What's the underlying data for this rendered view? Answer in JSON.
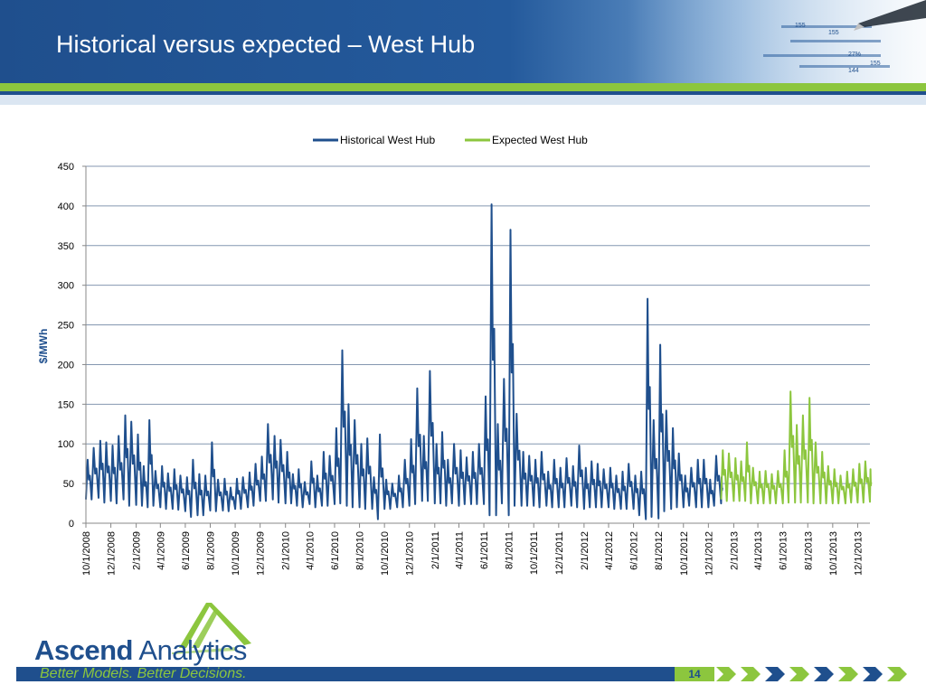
{
  "slide": {
    "title": "Historical versus expected – West Hub",
    "page_number": "14",
    "colors": {
      "brand_blue": "#1f4f8d",
      "brand_green": "#8cc63e"
    }
  },
  "header_art": {
    "numbers": [
      "155",
      "155",
      "27%",
      "155",
      "144"
    ]
  },
  "logo": {
    "bold": "Ascend",
    "rest": " Analytics",
    "tagline": "Better Models. Better Decisions."
  },
  "chart_data": {
    "type": "line",
    "xlabel": "",
    "ylabel": "$/MWh",
    "ylim": [
      0,
      450
    ],
    "yticks": [
      0,
      50,
      100,
      150,
      200,
      250,
      300,
      350,
      400,
      450
    ],
    "xlim": [
      "2008-10-01",
      "2013-12-31"
    ],
    "xticks": [
      "10/1/2008",
      "12/1/2008",
      "2/1/2009",
      "4/1/2009",
      "6/1/2009",
      "8/1/2009",
      "10/1/2009",
      "12/1/2009",
      "2/1/2010",
      "4/1/2010",
      "6/1/2010",
      "8/1/2010",
      "10/1/2010",
      "12/1/2010",
      "2/1/2011",
      "4/1/2011",
      "6/1/2011",
      "8/1/2011",
      "10/1/2011",
      "12/1/2011",
      "2/1/2012",
      "4/1/2012",
      "6/1/2012",
      "8/1/2012",
      "10/1/2012",
      "12/1/2012",
      "2/1/2013",
      "4/1/2013",
      "6/1/2013",
      "8/1/2013",
      "10/1/2013",
      "12/1/2013"
    ],
    "grid": true,
    "legend_position": "top",
    "series": [
      {
        "name": "Historical West Hub",
        "color": "#1f4f8d",
        "x": [
          "2008-10-01",
          "2008-10-15",
          "2008-11-01",
          "2008-11-15",
          "2008-12-01",
          "2008-12-15",
          "2009-01-01",
          "2009-01-15",
          "2009-02-01",
          "2009-02-15",
          "2009-03-01",
          "2009-03-15",
          "2009-04-01",
          "2009-04-15",
          "2009-05-01",
          "2009-05-15",
          "2009-06-01",
          "2009-06-15",
          "2009-07-01",
          "2009-07-15",
          "2009-08-01",
          "2009-08-15",
          "2009-09-01",
          "2009-09-15",
          "2009-10-01",
          "2009-10-15",
          "2009-11-01",
          "2009-11-15",
          "2009-12-01",
          "2009-12-15",
          "2010-01-01",
          "2010-01-15",
          "2010-02-01",
          "2010-02-15",
          "2010-03-01",
          "2010-03-15",
          "2010-04-01",
          "2010-04-15",
          "2010-05-01",
          "2010-05-15",
          "2010-06-01",
          "2010-06-15",
          "2010-07-01",
          "2010-07-15",
          "2010-08-01",
          "2010-08-15",
          "2010-09-01",
          "2010-09-15",
          "2010-10-01",
          "2010-10-15",
          "2010-11-01",
          "2010-11-15",
          "2010-12-01",
          "2010-12-15",
          "2011-01-01",
          "2011-01-15",
          "2011-02-01",
          "2011-02-15",
          "2011-03-01",
          "2011-03-15",
          "2011-04-01",
          "2011-04-15",
          "2011-05-01",
          "2011-05-15",
          "2011-06-01",
          "2011-06-15",
          "2011-07-01",
          "2011-07-15",
          "2011-08-01",
          "2011-08-15",
          "2011-09-01",
          "2011-09-15",
          "2011-10-01",
          "2011-10-15",
          "2011-11-01",
          "2011-11-15",
          "2011-12-01",
          "2011-12-15",
          "2012-01-01",
          "2012-01-15",
          "2012-02-01",
          "2012-02-15",
          "2012-03-01",
          "2012-03-15",
          "2012-04-01",
          "2012-04-15",
          "2012-05-01",
          "2012-05-15",
          "2012-06-01",
          "2012-06-15",
          "2012-07-01",
          "2012-07-15",
          "2012-08-01",
          "2012-08-15",
          "2012-09-01",
          "2012-09-15",
          "2012-10-01",
          "2012-10-15",
          "2012-11-01",
          "2012-11-15",
          "2012-12-01",
          "2012-12-15",
          "2013-01-01"
        ],
        "high": [
          80,
          95,
          104,
          102,
          98,
          110,
          136,
          128,
          112,
          72,
          130,
          66,
          72,
          63,
          68,
          60,
          58,
          80,
          62,
          60,
          102,
          55,
          56,
          45,
          56,
          58,
          64,
          75,
          84,
          125,
          110,
          105,
          90,
          62,
          68,
          52,
          78,
          60,
          90,
          85,
          120,
          218,
          150,
          130,
          100,
          107,
          58,
          112,
          55,
          50,
          60,
          80,
          106,
          170,
          110,
          192,
          100,
          115,
          80,
          100,
          92,
          83,
          90,
          100,
          160,
          402,
          125,
          182,
          370,
          138,
          90,
          85,
          80,
          90,
          65,
          80,
          70,
          82,
          72,
          98,
          70,
          78,
          75,
          68,
          70,
          60,
          65,
          75,
          60,
          65,
          283,
          130,
          225,
          142,
          120,
          88,
          60,
          70,
          80,
          80,
          55,
          85,
          58
        ],
        "low": [
          30,
          30,
          32,
          26,
          28,
          25,
          30,
          22,
          23,
          22,
          20,
          22,
          20,
          18,
          18,
          17,
          15,
          8,
          10,
          10,
          16,
          15,
          16,
          15,
          18,
          18,
          20,
          22,
          28,
          28,
          30,
          26,
          25,
          25,
          22,
          20,
          24,
          20,
          22,
          22,
          24,
          25,
          22,
          20,
          20,
          18,
          18,
          5,
          18,
          18,
          20,
          20,
          22,
          24,
          28,
          28,
          25,
          25,
          22,
          25,
          22,
          24,
          24,
          24,
          24,
          10,
          10,
          25,
          10,
          22,
          22,
          22,
          22,
          20,
          22,
          20,
          20,
          20,
          22,
          20,
          18,
          20,
          20,
          20,
          20,
          18,
          18,
          18,
          18,
          10,
          5,
          8,
          6,
          15,
          18,
          20,
          20,
          22,
          20,
          20,
          20,
          22,
          25
        ]
      },
      {
        "name": "Expected West Hub",
        "color": "#8cc63e",
        "x": [
          "2013-01-01",
          "2013-01-15",
          "2013-02-01",
          "2013-02-15",
          "2013-03-01",
          "2013-03-15",
          "2013-04-01",
          "2013-04-15",
          "2013-05-01",
          "2013-05-15",
          "2013-06-01",
          "2013-06-15",
          "2013-07-01",
          "2013-07-15",
          "2013-08-01",
          "2013-08-15",
          "2013-09-01",
          "2013-09-15",
          "2013-10-01",
          "2013-10-15",
          "2013-11-01",
          "2013-11-15",
          "2013-12-01",
          "2013-12-15",
          "2013-12-31"
        ],
        "high": [
          92,
          88,
          82,
          78,
          102,
          70,
          65,
          66,
          62,
          66,
          92,
          166,
          124,
          136,
          158,
          102,
          90,
          72,
          68,
          60,
          65,
          68,
          75,
          78,
          68
        ],
        "low": [
          30,
          28,
          28,
          28,
          28,
          25,
          25,
          25,
          25,
          25,
          25,
          26,
          26,
          26,
          26,
          25,
          25,
          25,
          25,
          25,
          25,
          26,
          26,
          26,
          27
        ]
      }
    ]
  }
}
